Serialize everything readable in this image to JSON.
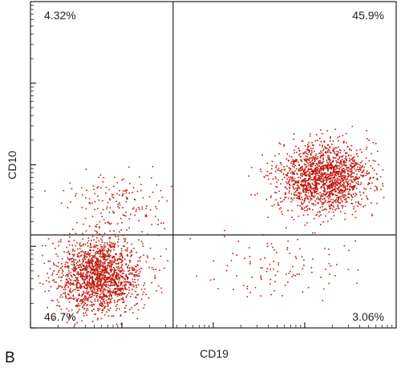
{
  "panel_label": "B",
  "chart_data": {
    "type": "scatter",
    "title": "",
    "xlabel": "CD19",
    "ylabel": "CD10",
    "scale": "log (4 decades, unlabeled)",
    "xlim": [
      0,
      4
    ],
    "ylim": [
      0,
      4
    ],
    "grid": false,
    "gates": {
      "x": 1.56,
      "y": 1.14
    },
    "quadrants": [
      {
        "position": "upper-left",
        "label": "4.32%"
      },
      {
        "position": "upper-right",
        "label": "45.9%"
      },
      {
        "position": "lower-left",
        "label": "46.7%"
      },
      {
        "position": "lower-right",
        "label": "3.06%"
      }
    ],
    "populations": [
      {
        "name": "",
        "center": [
          0.75,
          0.65
        ],
        "spread": [
          0.42,
          0.42
        ],
        "fraction": 0.467
      },
      {
        "name": "",
        "center": [
          3.2,
          1.85
        ],
        "spread": [
          0.45,
          0.38
        ],
        "fraction": 0.459
      },
      {
        "name": "",
        "center": [
          1.0,
          1.55
        ],
        "spread": [
          0.55,
          0.3
        ],
        "fraction": 0.0432
      },
      {
        "name": "",
        "center": [
          2.7,
          0.8
        ],
        "spread": [
          0.7,
          0.4
        ],
        "fraction": 0.0306
      }
    ],
    "event_count_drawn": 3600,
    "dot_color": "#c0180c"
  }
}
